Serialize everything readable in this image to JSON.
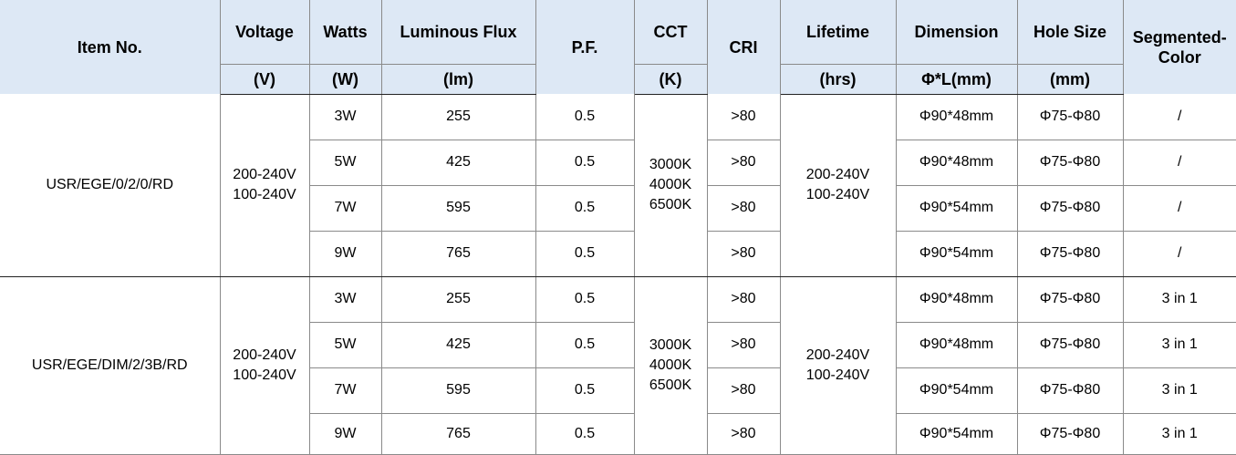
{
  "header": {
    "item_no": "Item No.",
    "voltage": "Voltage",
    "voltage_unit": "(V)",
    "watts": "Watts",
    "watts_unit": "(W)",
    "flux": "Luminous Flux",
    "flux_unit": "(lm)",
    "pf": "P.F.",
    "cct": "CCT",
    "cct_unit": "(K)",
    "cri": "CRI",
    "lifetime": "Lifetime",
    "lifetime_unit": "(hrs)",
    "dimension": "Dimension",
    "dimension_unit": "Φ*L(mm)",
    "hole": "Hole Size",
    "hole_unit": "(mm)",
    "segmented_1": "Segmented-",
    "segmented_2": "Color"
  },
  "groups": [
    {
      "item_no": "USR/EGE/0/2/0/RD",
      "voltage": [
        "200-240V",
        "100-240V"
      ],
      "cct": [
        "3000K",
        "4000K",
        "6500K"
      ],
      "lifetime": [
        "200-240V",
        "100-240V"
      ],
      "rows": [
        {
          "watts": "3W",
          "flux": "255",
          "pf": "0.5",
          "cri": ">80",
          "dimension": "Φ90*48mm",
          "hole": "Φ75-Φ80",
          "segmented": "/"
        },
        {
          "watts": "5W",
          "flux": "425",
          "pf": "0.5",
          "cri": ">80",
          "dimension": "Φ90*48mm",
          "hole": "Φ75-Φ80",
          "segmented": "/"
        },
        {
          "watts": "7W",
          "flux": "595",
          "pf": "0.5",
          "cri": ">80",
          "dimension": "Φ90*54mm",
          "hole": "Φ75-Φ80",
          "segmented": "/"
        },
        {
          "watts": "9W",
          "flux": "765",
          "pf": "0.5",
          "cri": ">80",
          "dimension": "Φ90*54mm",
          "hole": "Φ75-Φ80",
          "segmented": "/"
        }
      ]
    },
    {
      "item_no": "USR/EGE/DIM/2/3B/RD",
      "voltage": [
        "200-240V",
        "100-240V"
      ],
      "cct": [
        "3000K",
        "4000K",
        "6500K"
      ],
      "lifetime": [
        "200-240V",
        "100-240V"
      ],
      "rows": [
        {
          "watts": "3W",
          "flux": "255",
          "pf": "0.5",
          "cri": ">80",
          "dimension": "Φ90*48mm",
          "hole": "Φ75-Φ80",
          "segmented": "3 in 1"
        },
        {
          "watts": "5W",
          "flux": "425",
          "pf": "0.5",
          "cri": ">80",
          "dimension": "Φ90*48mm",
          "hole": "Φ75-Φ80",
          "segmented": "3 in 1"
        },
        {
          "watts": "7W",
          "flux": "595",
          "pf": "0.5",
          "cri": ">80",
          "dimension": "Φ90*54mm",
          "hole": "Φ75-Φ80",
          "segmented": "3 in 1"
        },
        {
          "watts": "9W",
          "flux": "765",
          "pf": "0.5",
          "cri": ">80",
          "dimension": "Φ90*54mm",
          "hole": "Φ75-Φ80",
          "segmented": "3 in 1"
        }
      ]
    }
  ]
}
